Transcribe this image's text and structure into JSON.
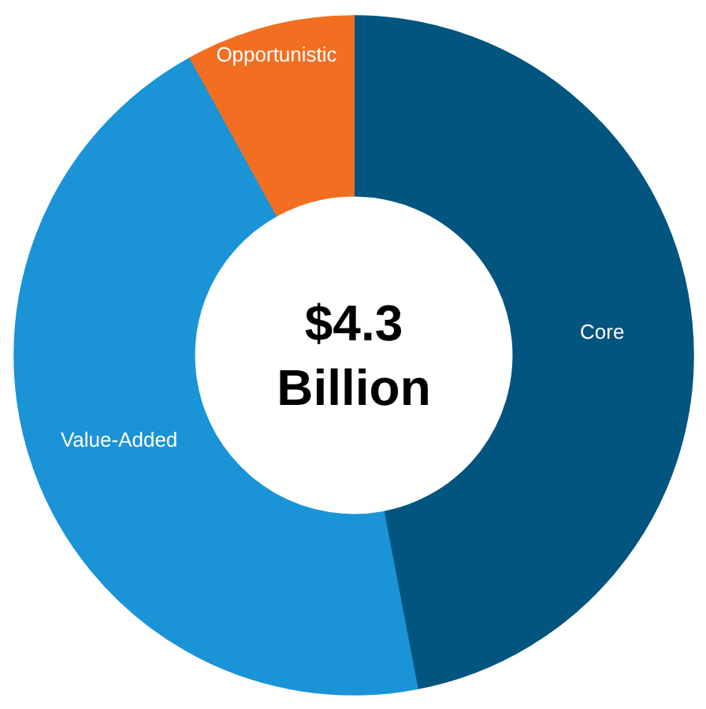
{
  "chart_data": {
    "type": "donut",
    "categories": [
      "Core",
      "Value-Added",
      "Opportunistic"
    ],
    "values": [
      47,
      45,
      8
    ],
    "colors": [
      "#02557f",
      "#1a94d6",
      "#f26f21"
    ],
    "annotations": [
      "$4.3\nBillion"
    ]
  }
}
